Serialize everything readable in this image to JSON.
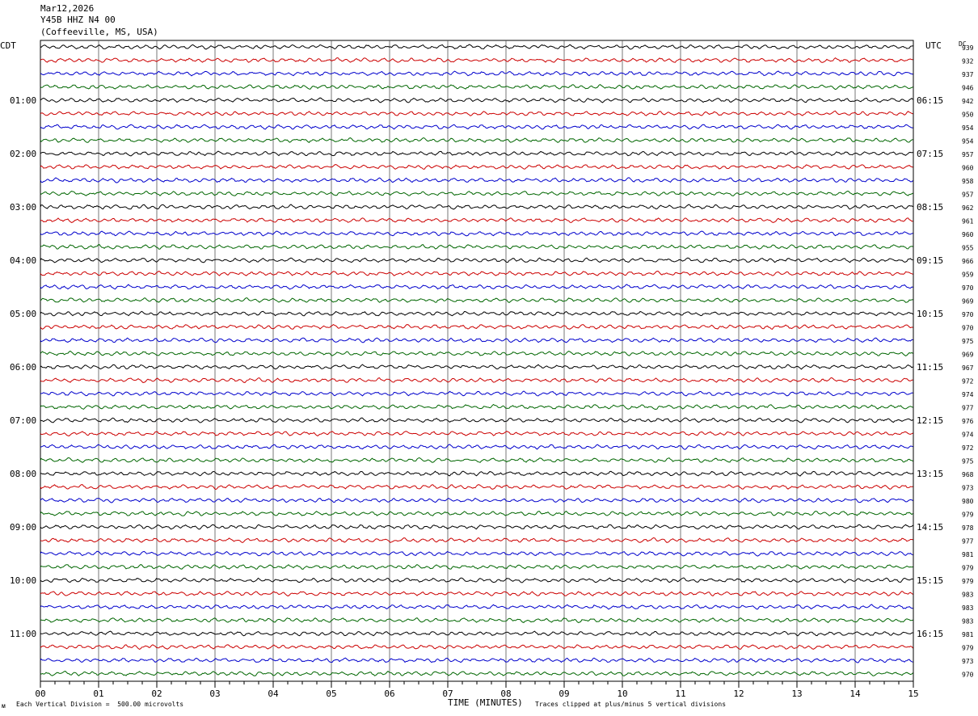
{
  "header": {
    "date": "Mar12,2026",
    "station": "Y45B HHZ N4 00",
    "location": "(Coffeeville, MS, USA)"
  },
  "left_tz": "CDT",
  "right_tz": "UTC",
  "dc_label": "DC",
  "footer": {
    "scale": "Each Vertical Division =  500.00 microvolts",
    "xlabel": "TIME (MINUTES)",
    "clip": "Traces clipped at plus/minus 5 vertical divisions"
  },
  "chart_data": {
    "type": "line",
    "xlabel": "TIME (MINUTES)",
    "xlim": [
      0,
      15
    ],
    "x_ticks": [
      "00",
      "01",
      "02",
      "03",
      "04",
      "05",
      "06",
      "07",
      "08",
      "09",
      "10",
      "11",
      "12",
      "13",
      "14",
      "15"
    ],
    "trace_colors": [
      "#000000",
      "#cc0000",
      "#0000cc",
      "#006600"
    ],
    "traces_per_hour": 4,
    "left_hour_labels": [
      "01:00",
      "02:00",
      "03:00",
      "04:00",
      "05:00",
      "06:00",
      "07:00",
      "08:00",
      "09:00",
      "10:00",
      "11:00"
    ],
    "right_hour_labels": [
      "06:15",
      "07:15",
      "08:15",
      "09:15",
      "10:15",
      "11:15",
      "12:15",
      "13:15",
      "14:15",
      "15:15",
      "16:15"
    ],
    "dc_values": [
      939,
      932,
      937,
      946,
      942,
      950,
      954,
      954,
      957,
      960,
      958,
      957,
      962,
      961,
      960,
      955,
      966,
      959,
      970,
      969,
      970,
      970,
      975,
      969,
      967,
      972,
      974,
      977,
      976,
      974,
      972,
      975,
      968,
      973,
      980,
      979,
      978,
      977,
      981,
      979,
      979,
      983,
      983,
      983,
      981,
      979,
      973,
      970
    ],
    "grid": true
  }
}
